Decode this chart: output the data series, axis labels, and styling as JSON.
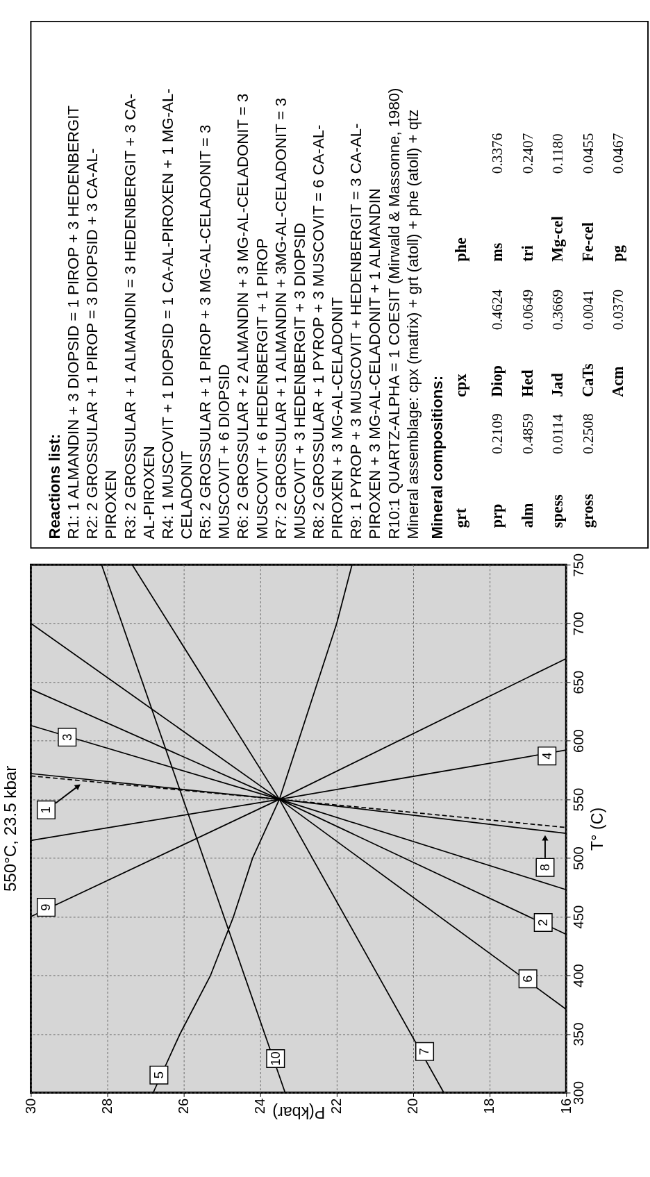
{
  "chart_data": [
    {
      "type": "line",
      "title": "550°C, 23.5 kbar",
      "xlabel": "P(kbar)",
      "ylabel": "T° (C)",
      "xlim": [
        30,
        16
      ],
      "ylim": [
        300,
        750
      ],
      "xticks": [
        30,
        28,
        26,
        24,
        22,
        20,
        18,
        16
      ],
      "yticks": [
        300,
        350,
        400,
        450,
        500,
        550,
        600,
        650,
        700,
        750
      ],
      "grid": true,
      "legend": false,
      "series": [
        {
          "color": "#000000",
          "x": [
            30,
            23.5,
            16
          ],
          "values": [
            572,
            550,
            521
          ]
        },
        {
          "color": "#000000",
          "x": [
            30,
            23.5,
            16
          ],
          "values": [
            570,
            550,
            526
          ],
          "line_style": "dashed"
        },
        {
          "color": "#000000",
          "x": [
            30,
            23.5,
            16
          ],
          "values": [
            644,
            550,
            435
          ]
        },
        {
          "color": "#000000",
          "x": [
            30,
            23.5,
            16
          ],
          "values": [
            613,
            550,
            473
          ]
        },
        {
          "color": "#000000",
          "x": [
            30,
            23.5,
            16
          ],
          "values": [
            515,
            550,
            592
          ]
        },
        {
          "color": "#000000",
          "x": [
            26.8,
            26.1,
            25.3,
            24.7,
            24.2,
            23.5,
            23.0,
            22.0,
            21.6
          ],
          "values": [
            300,
            350,
            400,
            450,
            500,
            550,
            600,
            700,
            750
          ]
        },
        {
          "color": "#000000",
          "x": [
            30,
            23.5,
            16
          ],
          "values": [
            700,
            550,
            371
          ]
        },
        {
          "color": "#000000",
          "x": [
            19.2,
            23.5,
            27.35
          ],
          "values": [
            300,
            550,
            750
          ]
        },
        {
          "color": "#000000",
          "x": [
            30,
            23.5,
            16
          ],
          "values": [
            450,
            550,
            670
          ]
        },
        {
          "color": "#000000",
          "x": [
            23.35,
            28.15
          ],
          "values": [
            300,
            750
          ]
        }
      ],
      "annotations": [
        {
          "text": "1",
          "x": 29.6,
          "y": 541
        },
        {
          "text": "2",
          "x": 16.6,
          "y": 445
        },
        {
          "text": "3",
          "x": 29.05,
          "y": 603
        },
        {
          "text": "4",
          "x": 16.5,
          "y": 587
        },
        {
          "text": "5",
          "x": 26.65,
          "y": 315
        },
        {
          "text": "6",
          "x": 17.0,
          "y": 397
        },
        {
          "text": "7",
          "x": 19.7,
          "y": 335
        },
        {
          "text": "8",
          "x": 16.55,
          "y": 492
        },
        {
          "text": "9",
          "x": 29.6,
          "y": 458
        },
        {
          "text": "10",
          "x": 23.6,
          "y": 329
        }
      ]
    },
    {
      "type": "other",
      "title": "Reactions list:",
      "annotations": [
        "R1: 1 ALMANDIN + 3 DIOPSID = 1 PIROP + 3 HEDENBERGIT",
        "R2: 2 GROSSULAR + 1 PIROP = 3 DIOPSID + 3 CA-AL-",
        "PIROXEN",
        "R3: 2 GROSSULAR + 1 ALMANDIN = 3 HEDENBERGIT + 3 CA-",
        "AL-PIROXEN",
        "R4: 1 MUSCOVIT + 1 DIOPSID = 1 CA-AL-PIROXEN + 1 MG-AL-",
        "CELADONIT",
        "R5: 2 GROSSULAR + 1 PIROP + 3 MG-AL-CELADONIT = 3",
        "MUSCOVIT + 6 DIOPSID",
        "R6: 2 GROSSULAR + 2 ALMANDIN + 3 MG-AL-CELADONIT = 3",
        "MUSCOVIT + 6 HEDENBERGIT + 1 PIROP",
        "R7: 2 GROSSULAR + 1 ALMANDIN + 3MG-AL-CELADONIT = 3",
        "MUSCOVIT + 3 HEDENBERGIT + 3 DIOPSID",
        "R8: 2 GROSSULAR + 1 PYROP + 3 MUSCOVIT = 6 CA-AL-",
        "PIROXEN + 3 MG-AL-CELADONIT",
        "R9: 1 PYROP + 3 MUSCOVIT + HEDENBERGIT = 3 CA-AL-",
        "PIROXEN + 3 MG-AL-CELADONIT + 1 ALMANDIN",
        "R10:1 QUARTZ-ALPHA = 1 COESIT (Mirwald & Massonne, 1980)",
        "Mineral assemblage: cpx (matrix)  + grt (atoll) + phe (atoll) + qtz"
      ],
      "subtitle": "Mineral compositions:",
      "cells": [
        [
          "grt",
          null,
          "cpx",
          null,
          "phe",
          null
        ],
        [
          "prp",
          "0.2109",
          "Diop",
          "0.4624",
          "ms",
          "0.3376"
        ],
        [
          "alm",
          "0.4859",
          "Hed",
          "0.0649",
          "tri",
          "0.2407"
        ],
        [
          "spess",
          "0.0114",
          "Jad",
          "0.3669",
          "Mg-cel",
          "0.1180"
        ],
        [
          "gross",
          "0.2508",
          "CaTs",
          "0.0041",
          "Fe-cel",
          "0.0455"
        ],
        [
          null,
          null,
          "Acm",
          "0.0370",
          "pg",
          "0.0467"
        ]
      ]
    }
  ]
}
